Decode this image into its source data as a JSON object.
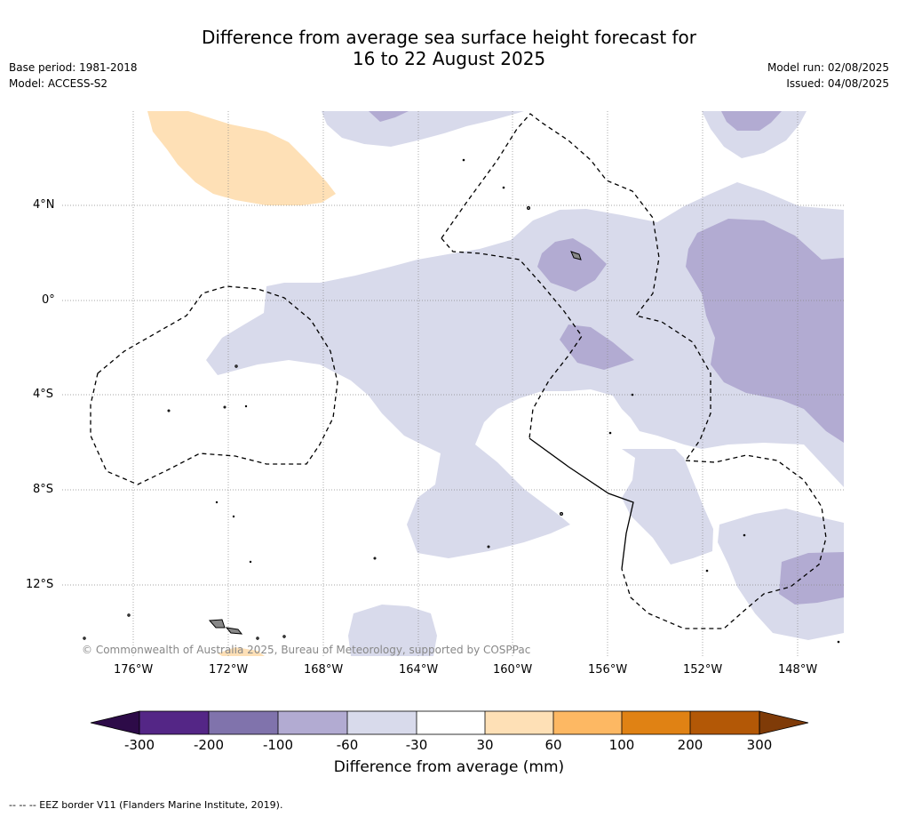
{
  "title_line1": "Difference from average sea surface height forecast for",
  "title_line2": "16 to 22 August 2025",
  "meta": {
    "base_period": "Base period: 1981-2018",
    "model": "Model: ACCESS-S2",
    "model_run": "Model run: 02/08/2025",
    "issued": "Issued: 04/08/2025"
  },
  "axes": {
    "lat_labels": [
      "4°N",
      "0°",
      "4°S",
      "8°S",
      "12°S"
    ],
    "lon_labels": [
      "176°W",
      "172°W",
      "168°W",
      "164°W",
      "160°W",
      "156°W",
      "152°W",
      "148°W"
    ]
  },
  "credit": "© Commonwealth of Australia 2025, Bureau of Meteorology, supported by COSPPac",
  "colorbar": {
    "label": "Difference from average (mm)",
    "ticks": [
      "-300",
      "-200",
      "-100",
      "-60",
      "-30",
      "30",
      "60",
      "100",
      "200",
      "300"
    ],
    "colors": [
      "#2d0b48",
      "#542686",
      "#8073ac",
      "#b2abd2",
      "#d8daeb",
      "#ffffff",
      "#fee0b6",
      "#fdb863",
      "#e08214",
      "#b35806",
      "#7f3b08"
    ]
  },
  "eez_note": "-- -- -- EEZ border V11 (Flanders Marine Institute, 2019)."
}
